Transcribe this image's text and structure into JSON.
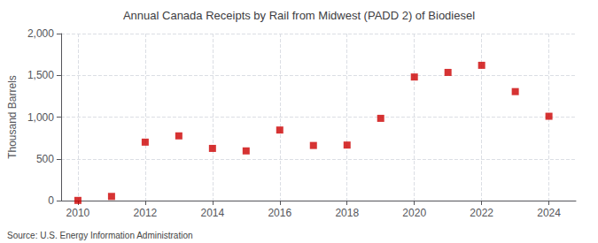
{
  "chart_data": {
    "type": "scatter",
    "title": "Annual Canada Receipts by Rail from Midwest (PADD 2) of Biodiesel",
    "ylabel": "Thousand Barrels",
    "annotations": [
      "Source: U.S. Energy Information Administration"
    ],
    "x": [
      2010,
      2011,
      2012,
      2013,
      2014,
      2015,
      2016,
      2017,
      2018,
      2019,
      2020,
      2021,
      2022,
      2023,
      2024
    ],
    "values": [
      2,
      50,
      700,
      775,
      625,
      595,
      845,
      660,
      665,
      985,
      1480,
      1535,
      1620,
      1305,
      1010
    ],
    "color": "#cc0000",
    "marker": "square",
    "xlim": [
      2009.5,
      2024.8
    ],
    "xticks": [
      2010,
      2012,
      2014,
      2016,
      2018,
      2020,
      2022,
      2024
    ],
    "ylim": [
      0,
      2000
    ],
    "yticks": [
      0,
      500,
      {
        "value": 1000,
        "label": "1,000"
      },
      {
        "value": 1500,
        "label": "1,500"
      },
      {
        "value": 2000,
        "label": "2,000"
      }
    ],
    "grid": true
  }
}
